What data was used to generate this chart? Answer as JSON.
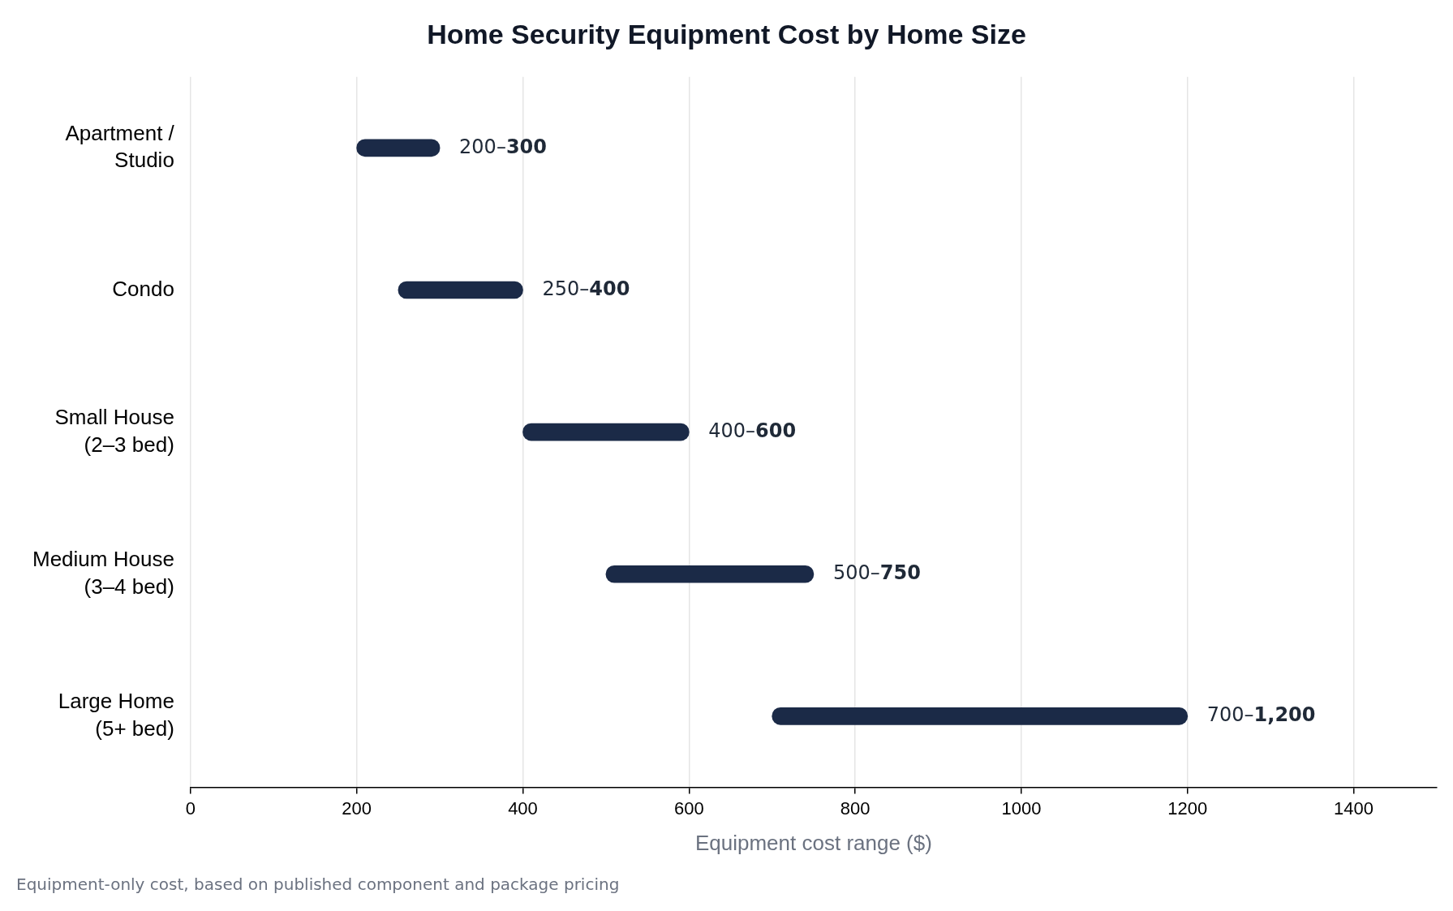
{
  "chart_data": {
    "type": "bar",
    "orientation": "horizontal",
    "title": "Home Security Equipment Cost by Home Size",
    "xlabel": "Equipment cost range ($)",
    "categories": [
      "Apartment /\nStudio",
      "Condo",
      "Small House\n(2–3 bed)",
      "Medium House\n(3–4 bed)",
      "Large Home\n(5+ bed)"
    ],
    "base": [
      200,
      250,
      400,
      500,
      700
    ],
    "values": [
      100,
      150,
      200,
      250,
      500
    ],
    "value_labels": [
      "200–300",
      "250–400",
      "400–600",
      "500–750",
      "700–1,200"
    ],
    "color": "#1b2a47",
    "xlim": [
      0,
      1500
    ],
    "xticks": [
      0,
      200,
      400,
      600,
      800,
      1000,
      1200,
      1400
    ],
    "grid": "x",
    "legend": false,
    "annotations": [
      "Equipment-only cost, based on published component and package pricing"
    ]
  }
}
